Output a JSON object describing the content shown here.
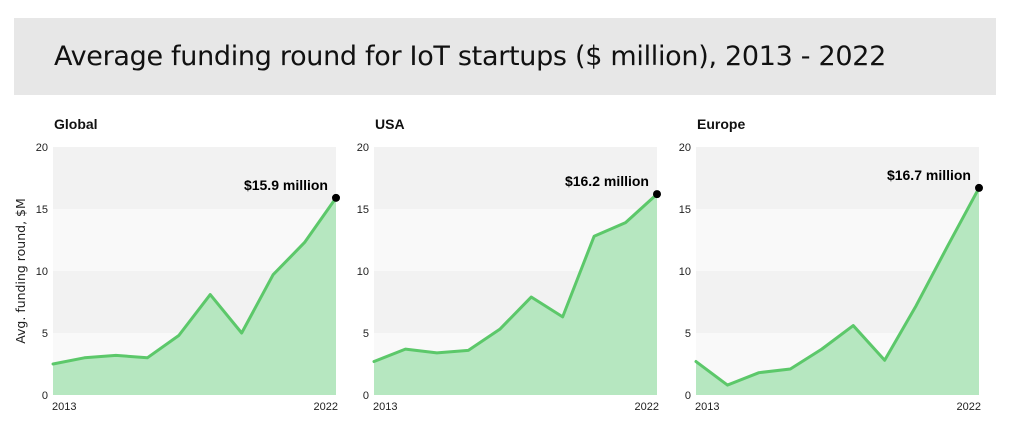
{
  "title": "Average funding round for IoT startups ($ million),  2013 - 2022",
  "colors": {
    "line": "#5cc86a",
    "area": "#b6e7c0",
    "band_light": "#f9f9f9",
    "band_dark": "#f2f2f2",
    "marker": "#000000"
  },
  "chart_data": [
    {
      "type": "area",
      "title": "Global",
      "ylabel": "Avg. funding round, $M",
      "ylim": [
        0,
        20
      ],
      "yticks": [
        "0",
        "5",
        "10",
        "15",
        "20"
      ],
      "x_tick_labels": [
        "2013",
        "2022"
      ],
      "x": [
        2013,
        2014,
        2015,
        2016,
        2017,
        2018,
        2019,
        2020,
        2021,
        2022
      ],
      "values": [
        2.5,
        3.0,
        3.2,
        3.0,
        4.8,
        8.1,
        5.0,
        9.7,
        12.3,
        15.9
      ],
      "annotation": "$15.9 million"
    },
    {
      "type": "area",
      "title": "USA",
      "ylabel": "",
      "ylim": [
        0,
        20
      ],
      "yticks": [
        "0",
        "5",
        "10",
        "15",
        "20"
      ],
      "x_tick_labels": [
        "2013",
        "2022"
      ],
      "x": [
        2013,
        2014,
        2015,
        2016,
        2017,
        2018,
        2019,
        2020,
        2021,
        2022
      ],
      "values": [
        2.7,
        3.7,
        3.4,
        3.6,
        5.3,
        7.9,
        6.3,
        12.8,
        13.9,
        16.2
      ],
      "annotation": "$16.2 million"
    },
    {
      "type": "area",
      "title": "Europe",
      "ylabel": "",
      "ylim": [
        0,
        20
      ],
      "yticks": [
        "0",
        "5",
        "10",
        "15",
        "20"
      ],
      "x_tick_labels": [
        "2013",
        "2022"
      ],
      "x": [
        2013,
        2014,
        2015,
        2016,
        2017,
        2018,
        2019,
        2020,
        2021,
        2022
      ],
      "values": [
        2.7,
        0.8,
        1.8,
        2.1,
        3.7,
        5.6,
        2.8,
        7.2,
        12.0,
        16.7
      ],
      "annotation": "$16.7 million"
    }
  ]
}
